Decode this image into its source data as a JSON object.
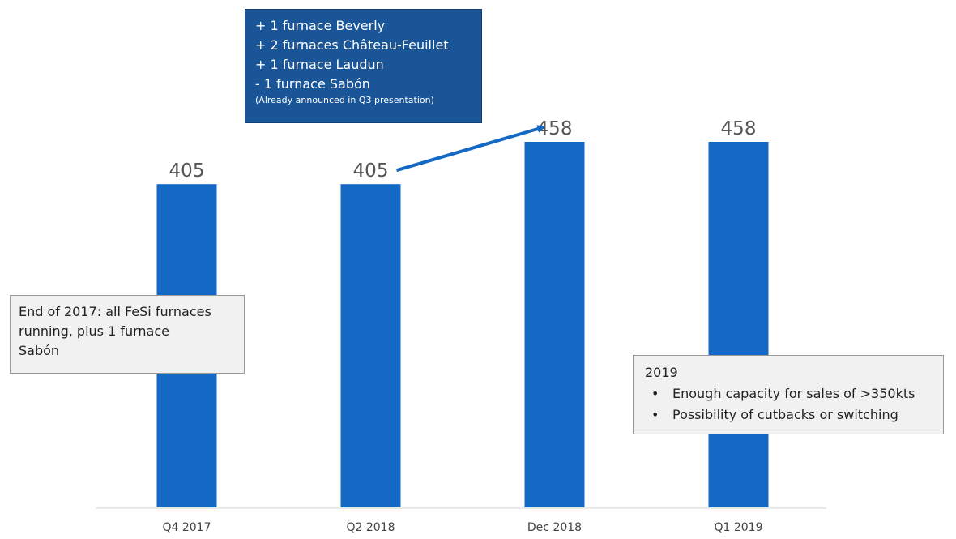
{
  "chart_data": {
    "type": "bar",
    "categories": [
      "Q4 2017",
      "Q2 2018",
      "Dec 2018",
      "Q1 2019"
    ],
    "values": [
      405,
      405,
      458,
      458
    ],
    "data_labels": [
      "405",
      "405",
      "458",
      "458"
    ],
    "ylim": [
      0,
      458
    ],
    "grid": false,
    "legend": "none",
    "bar_color": "#1469c4",
    "annotations": {
      "top_box": {
        "lines": [
          "+ 1 furnace Beverly",
          "+ 2 furnaces Château-Feuillet",
          "+ 1 furnace Laudun",
          "- 1 furnace Sabón"
        ],
        "note": "(Already announced in Q3 presentation)"
      },
      "left_box": {
        "lines": [
          "End of 2017: all FeSi furnaces",
          "running, plus 1 furnace",
          "Sabón"
        ]
      },
      "right_box": {
        "heading": "2019",
        "bullets": [
          "Enough capacity for sales of >350kts",
          "Possibility of cutbacks or switching"
        ]
      },
      "arrow": {
        "from": "Q2 2018",
        "to": "Dec 2018",
        "color": "#1469c4"
      }
    }
  }
}
